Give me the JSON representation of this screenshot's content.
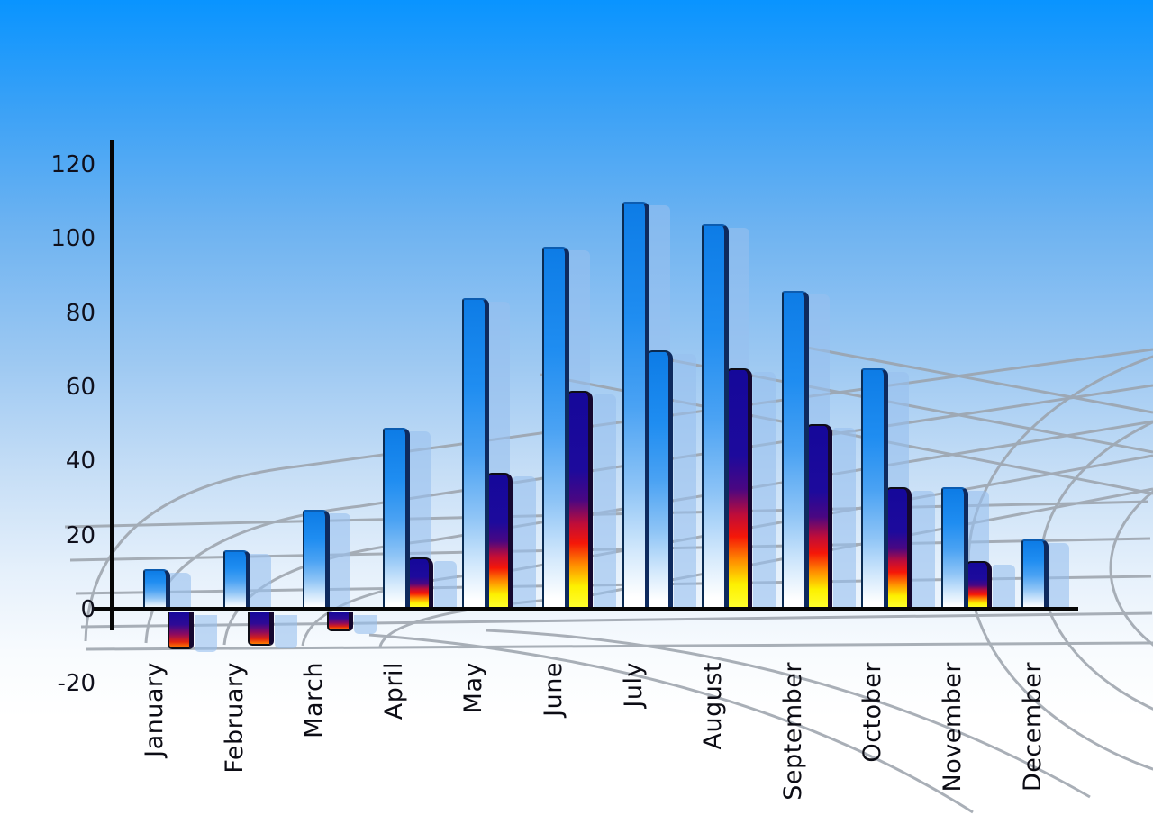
{
  "chart_data": {
    "type": "bar",
    "title": "",
    "categories": [
      "January",
      "February",
      "March",
      "April",
      "May",
      "June",
      "July",
      "August",
      "September",
      "October",
      "November",
      "December"
    ],
    "series": [
      {
        "name": "primary-blue-bars",
        "values": [
          11,
          16,
          27,
          49,
          84,
          98,
          110,
          104,
          86,
          65,
          33,
          19
        ]
      },
      {
        "name": "secondary-gradient-bars",
        "values": [
          -10,
          -9,
          -5,
          14,
          37,
          59,
          70,
          65,
          50,
          33,
          13,
          null
        ]
      }
    ],
    "ylabel": "",
    "xlabel": "",
    "ylim": [
      -20,
      120
    ],
    "yticks": [
      120,
      100,
      80,
      60,
      40,
      20,
      0,
      -20
    ],
    "legend": "none",
    "grid": "decorative perspective floor grid",
    "style_notes": {
      "july_secondary_bar_style": "blue gradient (not navy-red-yellow)",
      "december_secondary_bar": "absent",
      "each_bar_has_translucent_shadow_copy_offset_right": true
    }
  },
  "colors": {
    "sky_top": "#0994ff",
    "sky_bottom": "#ffffff",
    "blue_bar_top": "#0d7ce6",
    "blue_bar_bottom": "#ffffff",
    "gradient_bar_stops": [
      "#15089a",
      "#c00d38",
      "#f51708",
      "#ff8c00",
      "#ffff2e"
    ],
    "bar_shadow": "rgba(151,192,238,0.60)",
    "grid_line": "#9ba2ab",
    "axis": "#060606",
    "label_text": "#0c0c14"
  }
}
